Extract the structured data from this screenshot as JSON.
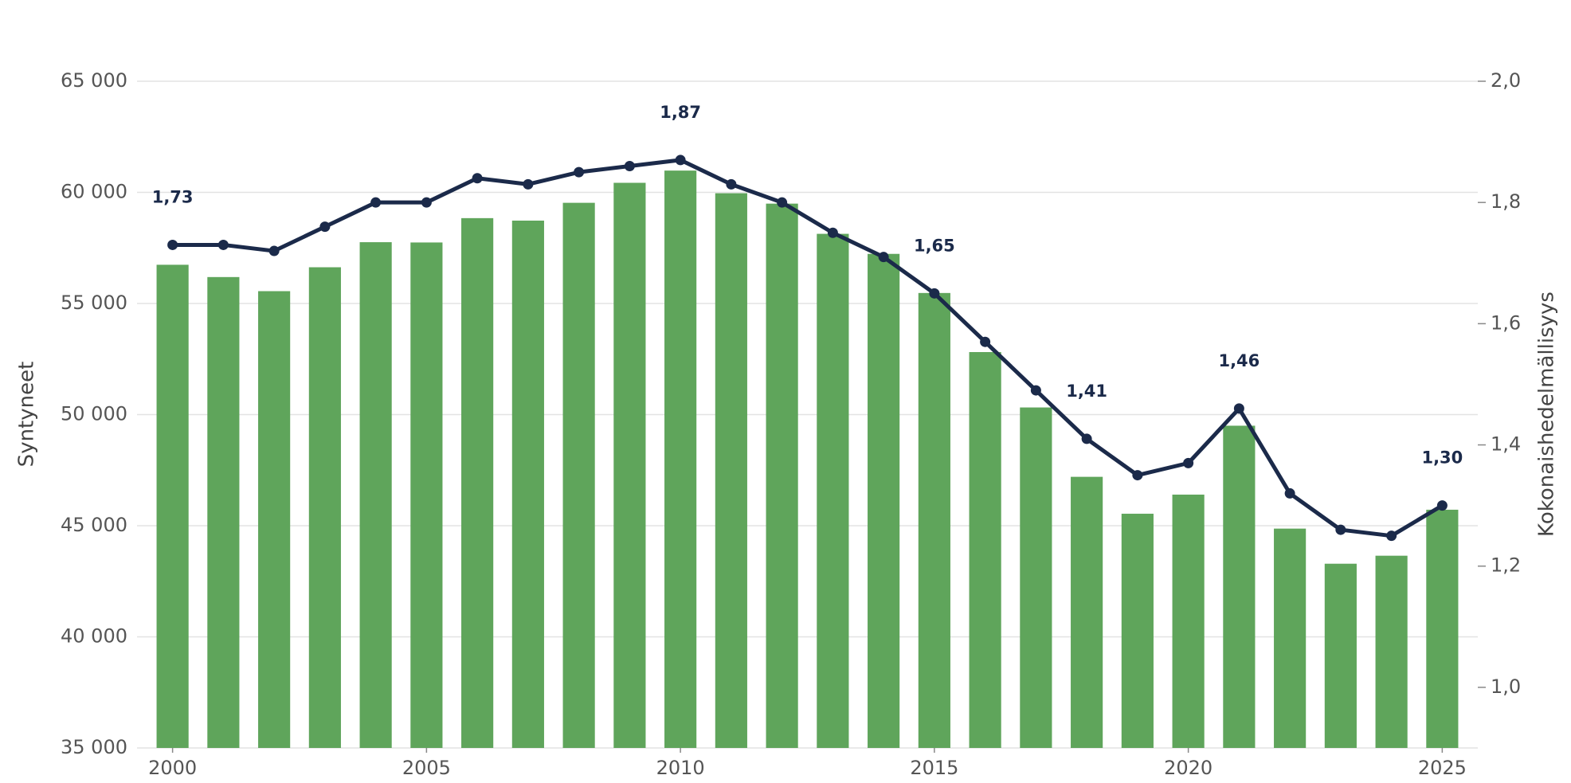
{
  "chart_data": {
    "type": "bar_line",
    "y_label": "Syntyneet",
    "y2_label": "Kokonaishedelmällisyys",
    "x": [
      2000,
      2001,
      2002,
      2003,
      2004,
      2005,
      2006,
      2007,
      2008,
      2009,
      2010,
      2011,
      2012,
      2013,
      2014,
      2015,
      2016,
      2017,
      2018,
      2019,
      2020,
      2021,
      2022,
      2023,
      2024,
      2025
    ],
    "xlim": [
      1999.3,
      2025.7
    ],
    "xticks": [
      2000,
      2005,
      2010,
      2015,
      2020,
      2025
    ],
    "ylim": [
      35000,
      65000
    ],
    "yticks": [
      {
        "value": 35000,
        "label": "35 000"
      },
      {
        "value": 40000,
        "label": "40 000"
      },
      {
        "value": 45000,
        "label": "45 000"
      },
      {
        "value": 50000,
        "label": "50 000"
      },
      {
        "value": 55000,
        "label": "55 000"
      },
      {
        "value": 60000,
        "label": "60 000"
      },
      {
        "value": 65000,
        "label": "65 000"
      }
    ],
    "y2lim": [
      0.9,
      2.0
    ],
    "y2ticks": [
      {
        "value": 1.0,
        "label": "1,0"
      },
      {
        "value": 1.2,
        "label": "1,2"
      },
      {
        "value": 1.4,
        "label": "1,4"
      },
      {
        "value": 1.6,
        "label": "1,6"
      },
      {
        "value": 1.8,
        "label": "1,8"
      },
      {
        "value": 2.0,
        "label": "2,0"
      }
    ],
    "grid": true,
    "series": [
      {
        "name": "Syntyneet",
        "type": "bar",
        "color": "#5fa55b",
        "values": [
          56742,
          56189,
          55555,
          56630,
          57758,
          57745,
          58840,
          58729,
          59530,
          60430,
          60980,
          59961,
          59493,
          58134,
          57232,
          55472,
          52814,
          50321,
          47200,
          45540,
          46400,
          49500,
          44870,
          43290,
          43650,
          45720
        ]
      },
      {
        "name": "Kokonaishedelmällisyys",
        "type": "line",
        "axis": "y2",
        "color": "#1b2a4a",
        "values": [
          1.73,
          1.73,
          1.72,
          1.76,
          1.8,
          1.8,
          1.84,
          1.83,
          1.85,
          1.86,
          1.87,
          1.83,
          1.8,
          1.75,
          1.71,
          1.65,
          1.57,
          1.49,
          1.41,
          1.35,
          1.37,
          1.46,
          1.32,
          1.26,
          1.25,
          1.3
        ],
        "value_labels": [
          "1,73",
          null,
          null,
          null,
          null,
          null,
          null,
          null,
          null,
          null,
          "1,87",
          null,
          null,
          null,
          null,
          "1,65",
          null,
          null,
          "1,41",
          null,
          null,
          "1,46",
          null,
          null,
          null,
          "1,30"
        ]
      }
    ]
  }
}
